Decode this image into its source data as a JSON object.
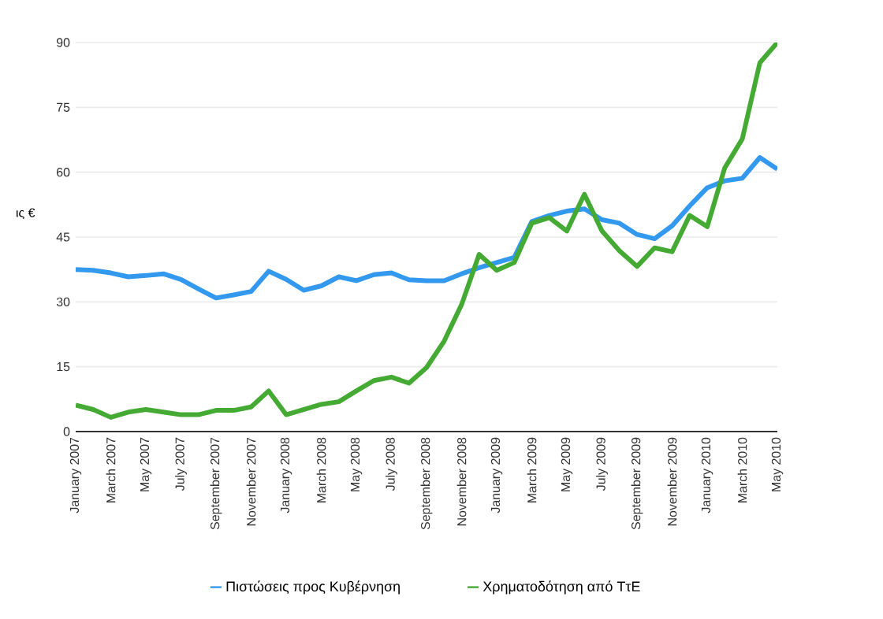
{
  "chart_data": {
    "type": "line",
    "ylabel": "ις €",
    "categories": [
      "January 2007",
      null,
      "March 2007",
      null,
      "May 2007",
      null,
      "July 2007",
      null,
      "September 2007",
      null,
      "November 2007",
      null,
      "January 2008",
      null,
      "March 2008",
      null,
      "May 2008",
      null,
      "July 2008",
      null,
      "September 2008",
      null,
      "November 2008",
      null,
      "January 2009",
      null,
      "March 2009",
      null,
      "May 2009",
      null,
      "July 2009",
      null,
      "September 2009",
      null,
      "November 2009",
      null,
      "January 2010",
      null,
      "March 2010",
      null,
      "May 2010"
    ],
    "series": [
      {
        "name": "Πιστώσεις προς Κυβέρνηση",
        "color": "#3399ee",
        "values": [
          37.5,
          37.3,
          36.7,
          35.8,
          36.1,
          36.5,
          35.2,
          33,
          30.9,
          31.6,
          32.4,
          37.1,
          35.2,
          32.7,
          33.7,
          35.8,
          34.9,
          36.3,
          36.7,
          35.1,
          34.9,
          34.9,
          36.5,
          37.9,
          39.1,
          40.3,
          48.6,
          50,
          51,
          51.5,
          49,
          48.2,
          45.6,
          44.6,
          47.6,
          52.2,
          56.4,
          58,
          58.6,
          63.4,
          60.7
        ]
      },
      {
        "name": "Χρηματοδότηση από ΤτΕ",
        "color": "#44aa33",
        "values": [
          6.1,
          5.1,
          3.3,
          4.5,
          5.1,
          4.5,
          3.9,
          3.9,
          4.9,
          4.9,
          5.7,
          9.4,
          3.9,
          5.1,
          6.3,
          6.9,
          9.4,
          11.8,
          12.6,
          11.2,
          14.8,
          20.9,
          29.4,
          41,
          37.3,
          39.1,
          48.2,
          49.5,
          46.4,
          54.9,
          46.4,
          41.8,
          38.2,
          42.5,
          41.6,
          50,
          47.4,
          61,
          67.7,
          85.3,
          90
        ]
      }
    ],
    "ylim": [
      0,
      90
    ],
    "yticks": [
      0,
      15,
      30,
      45,
      60,
      75,
      90
    ],
    "grid": "y",
    "legend": "bottom",
    "line_style": "solid"
  }
}
